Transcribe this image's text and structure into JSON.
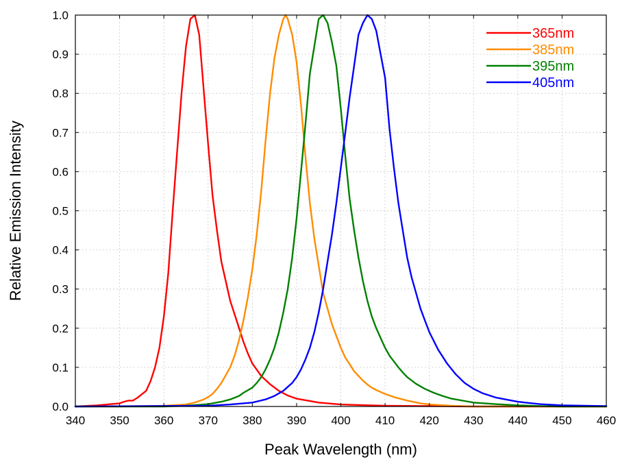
{
  "chart_data": {
    "type": "line",
    "title": "",
    "xlabel": "Peak Wavelength (nm)",
    "ylabel": "Relative Emission Intensity",
    "xlim": [
      340,
      460
    ],
    "ylim": [
      0,
      1.0
    ],
    "x_ticks": [
      340,
      350,
      360,
      370,
      380,
      390,
      400,
      410,
      420,
      430,
      440,
      450,
      460
    ],
    "y_ticks": [
      "0.0",
      "0.1",
      "0.2",
      "0.3",
      "0.4",
      "0.5",
      "0.6",
      "0.7",
      "0.8",
      "0.9",
      "1.0"
    ],
    "grid": true,
    "legend_position": "top-right",
    "series": [
      {
        "name": "365nm",
        "color": "#ff0000",
        "x": [
          340,
          345,
          348,
          350,
          351,
          352,
          353,
          354,
          356,
          357,
          358,
          359,
          360,
          361,
          362,
          363,
          364,
          364.5,
          365,
          366,
          367,
          368,
          369,
          370,
          371,
          372,
          373,
          374,
          375,
          376,
          377,
          378,
          379,
          380,
          382,
          384,
          386,
          388,
          390,
          395,
          400,
          410,
          420,
          430,
          440,
          460
        ],
        "y": [
          0.0,
          0.003,
          0.006,
          0.008,
          0.012,
          0.015,
          0.015,
          0.022,
          0.04,
          0.065,
          0.1,
          0.15,
          0.23,
          0.34,
          0.5,
          0.65,
          0.8,
          0.86,
          0.92,
          0.99,
          1.0,
          0.95,
          0.81,
          0.67,
          0.54,
          0.45,
          0.37,
          0.32,
          0.27,
          0.235,
          0.2,
          0.165,
          0.135,
          0.11,
          0.078,
          0.057,
          0.04,
          0.028,
          0.02,
          0.01,
          0.005,
          0.002,
          0.001,
          0.0,
          0.0,
          0.0
        ]
      },
      {
        "name": "385nm",
        "color": "#ff8c00",
        "x": [
          340,
          350,
          360,
          365,
          367,
          369,
          370,
          371,
          372,
          373,
          374,
          375,
          376,
          377,
          378,
          379,
          380,
          381,
          382,
          383,
          384,
          385,
          386,
          387,
          387.5,
          388,
          389,
          390,
          391,
          392,
          393,
          394,
          395,
          396,
          397,
          398,
          399,
          400,
          401,
          402,
          403,
          404,
          405,
          406,
          407,
          408,
          410,
          412,
          415,
          418,
          420,
          425,
          430,
          440,
          450,
          460
        ],
        "y": [
          0.0,
          0.0,
          0.002,
          0.005,
          0.01,
          0.018,
          0.024,
          0.032,
          0.045,
          0.06,
          0.08,
          0.1,
          0.13,
          0.17,
          0.22,
          0.28,
          0.35,
          0.44,
          0.55,
          0.68,
          0.8,
          0.89,
          0.95,
          0.99,
          1.0,
          0.99,
          0.95,
          0.88,
          0.77,
          0.64,
          0.52,
          0.43,
          0.36,
          0.29,
          0.25,
          0.21,
          0.18,
          0.15,
          0.125,
          0.108,
          0.09,
          0.078,
          0.066,
          0.056,
          0.048,
          0.042,
          0.032,
          0.024,
          0.015,
          0.008,
          0.005,
          0.002,
          0.0,
          0.0,
          0.0,
          0.0
        ]
      },
      {
        "name": "395nm",
        "color": "#008000",
        "x": [
          340,
          360,
          365,
          370,
          373,
          375,
          377,
          378,
          380,
          381,
          382,
          383,
          384,
          385,
          386,
          387,
          388,
          389,
          390,
          391,
          392,
          393,
          394,
          395,
          396,
          397,
          398,
          399,
          400,
          401,
          402,
          403,
          404,
          405,
          406,
          407,
          408,
          409,
          410,
          411,
          412,
          413,
          414,
          415,
          417,
          419,
          421,
          423,
          425,
          428,
          430,
          435,
          440,
          445,
          450,
          460
        ],
        "y": [
          0.0,
          0.0,
          0.002,
          0.006,
          0.012,
          0.018,
          0.027,
          0.035,
          0.048,
          0.06,
          0.075,
          0.095,
          0.12,
          0.15,
          0.19,
          0.24,
          0.3,
          0.38,
          0.48,
          0.6,
          0.72,
          0.85,
          0.92,
          0.99,
          1.0,
          0.98,
          0.93,
          0.87,
          0.76,
          0.64,
          0.53,
          0.45,
          0.38,
          0.32,
          0.27,
          0.23,
          0.2,
          0.175,
          0.15,
          0.13,
          0.115,
          0.1,
          0.087,
          0.075,
          0.058,
          0.045,
          0.035,
          0.027,
          0.02,
          0.014,
          0.01,
          0.006,
          0.003,
          0.001,
          0.0,
          0.0
        ]
      },
      {
        "name": "405nm",
        "color": "#0000ff",
        "x": [
          340,
          370,
          375,
          380,
          383,
          385,
          387,
          389,
          390,
          391,
          392,
          393,
          394,
          395,
          396,
          397,
          398,
          399,
          400,
          401,
          402,
          403,
          404,
          405,
          406,
          407,
          408,
          409,
          410,
          411,
          412,
          413,
          414,
          415,
          416,
          417,
          418,
          419,
          420,
          422,
          424,
          426,
          428,
          430,
          432,
          435,
          440,
          445,
          450,
          460
        ],
        "y": [
          0.0,
          0.002,
          0.005,
          0.01,
          0.018,
          0.027,
          0.04,
          0.06,
          0.075,
          0.095,
          0.12,
          0.15,
          0.19,
          0.24,
          0.3,
          0.37,
          0.44,
          0.52,
          0.61,
          0.7,
          0.79,
          0.87,
          0.95,
          0.98,
          1.0,
          0.99,
          0.96,
          0.9,
          0.84,
          0.71,
          0.61,
          0.52,
          0.45,
          0.38,
          0.33,
          0.29,
          0.25,
          0.22,
          0.19,
          0.145,
          0.11,
          0.082,
          0.06,
          0.045,
          0.034,
          0.023,
          0.012,
          0.006,
          0.003,
          0.001
        ]
      }
    ]
  }
}
